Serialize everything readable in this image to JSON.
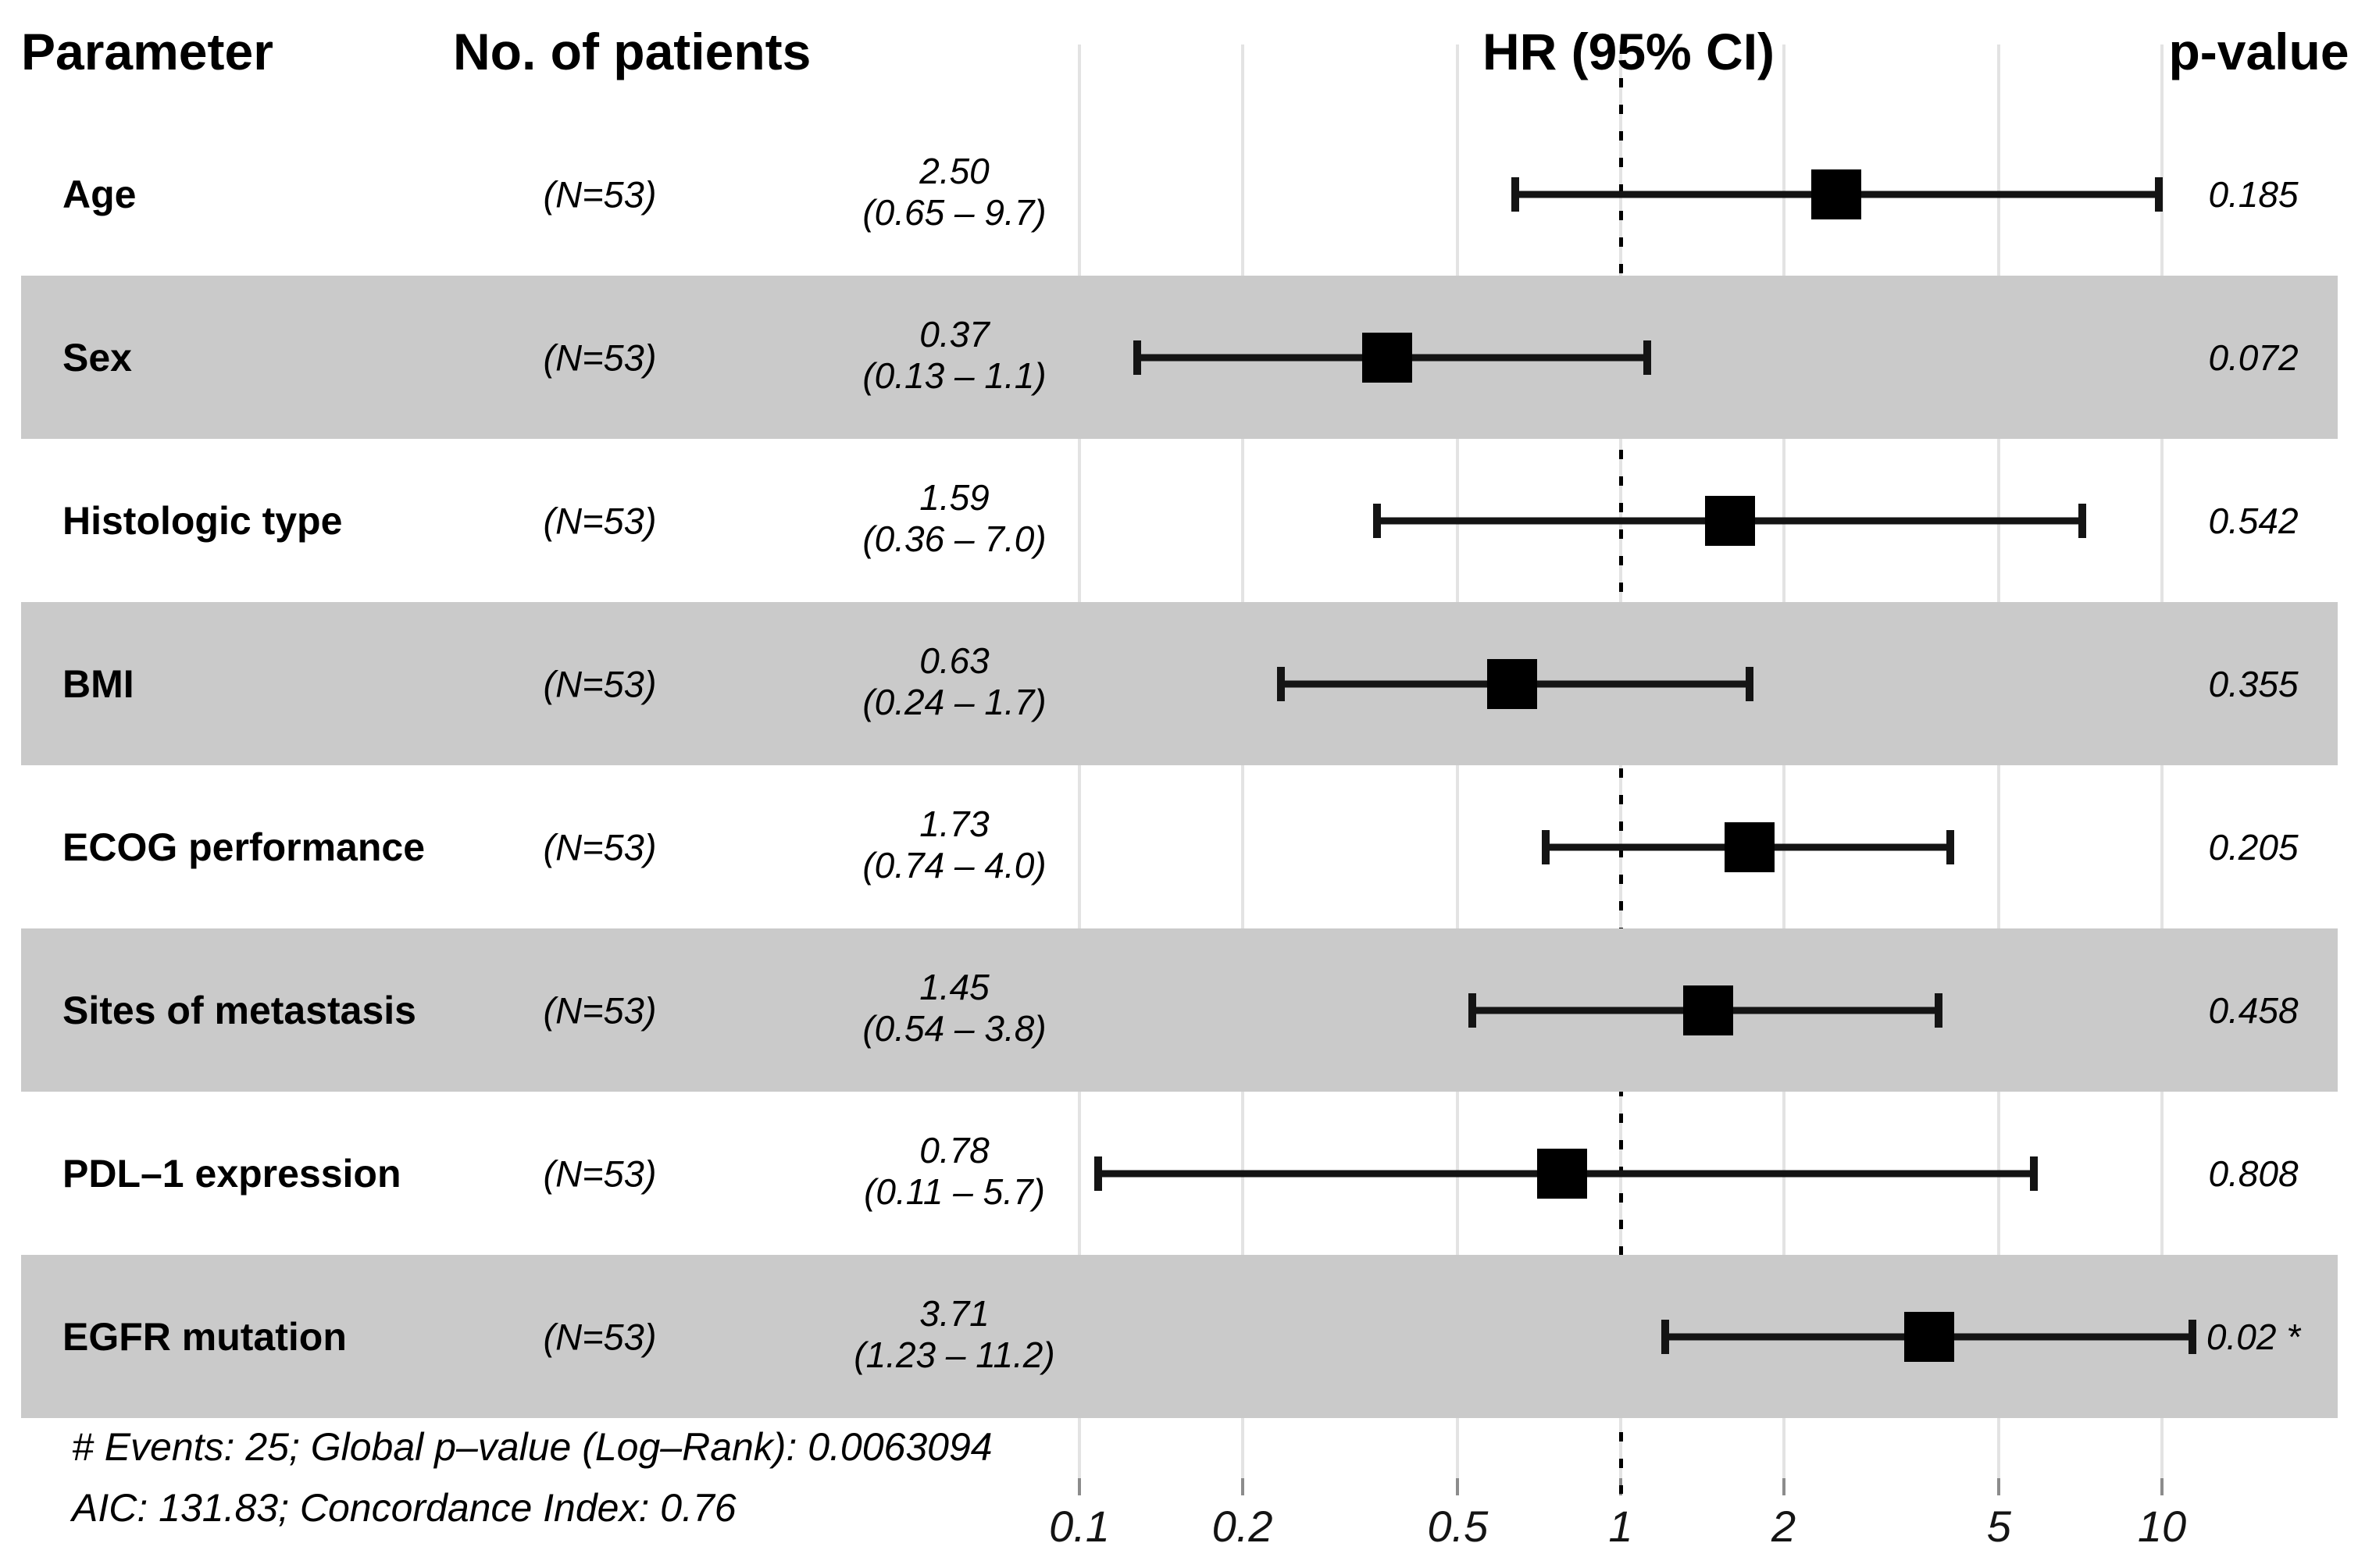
{
  "chart_data": {
    "type": "forest",
    "columns": {
      "parameter": "Parameter",
      "patients": "No. of patients",
      "hr": "HR (95% CI)",
      "pvalue": "p-value"
    },
    "axis": {
      "scale": "log10",
      "ticks": [
        "0.1",
        "0.2",
        "0.5",
        "1",
        "2",
        "5",
        "10"
      ],
      "tick_values": [
        0.1,
        0.2,
        0.5,
        1,
        2,
        5,
        10
      ],
      "reference_line": 1,
      "xlim": [
        0.1,
        11.5
      ]
    },
    "rows": [
      {
        "parameter": "Age",
        "n": "(N=53)",
        "hr": 2.5,
        "ci_low": 0.65,
        "ci_high": 9.7,
        "hr_label": "2.50",
        "ci_label": "(0.65 – 9.7)",
        "p": "0.185",
        "shaded": false
      },
      {
        "parameter": "Sex",
        "n": "(N=53)",
        "hr": 0.37,
        "ci_low": 0.13,
        "ci_high": 1.1,
        "hr_label": "0.37",
        "ci_label": "(0.13 – 1.1)",
        "p": "0.072",
        "shaded": true
      },
      {
        "parameter": "Histologic type",
        "n": "(N=53)",
        "hr": 1.59,
        "ci_low": 0.36,
        "ci_high": 7.0,
        "hr_label": "1.59",
        "ci_label": "(0.36 – 7.0)",
        "p": "0.542",
        "shaded": false
      },
      {
        "parameter": "BMI",
        "n": "(N=53)",
        "hr": 0.63,
        "ci_low": 0.24,
        "ci_high": 1.7,
        "hr_label": "0.63",
        "ci_label": "(0.24 – 1.7)",
        "p": "0.355",
        "shaded": true
      },
      {
        "parameter": "ECOG performance",
        "n": "(N=53)",
        "hr": 1.73,
        "ci_low": 0.74,
        "ci_high": 4.0,
        "hr_label": "1.73",
        "ci_label": "(0.74 – 4.0)",
        "p": "0.205",
        "shaded": false
      },
      {
        "parameter": "Sites of metastasis",
        "n": "(N=53)",
        "hr": 1.45,
        "ci_low": 0.54,
        "ci_high": 3.8,
        "hr_label": "1.45",
        "ci_label": "(0.54 – 3.8)",
        "p": "0.458",
        "shaded": true
      },
      {
        "parameter": "PDL–1 expression",
        "n": "(N=53)",
        "hr": 0.78,
        "ci_low": 0.11,
        "ci_high": 5.7,
        "hr_label": "0.78",
        "ci_label": "(0.11 – 5.7)",
        "p": "0.808",
        "shaded": false
      },
      {
        "parameter": "EGFR mutation",
        "n": "(N=53)",
        "hr": 3.71,
        "ci_low": 1.23,
        "ci_high": 11.2,
        "hr_label": "3.71",
        "ci_label": "(1.23 – 11.2)",
        "p": "0.02 *",
        "shaded": true
      }
    ],
    "footnotes": [
      "# Events: 25; Global p–value (Log–Rank): 0.0063094",
      "AIC: 131.83; Concordance Index: 0.76"
    ],
    "colors": {
      "stripe": "#cacaca",
      "marker": "#000000",
      "ci_line": "#141414",
      "grid": "rgba(0,0,0,0.11)",
      "reference": "#000000"
    }
  }
}
